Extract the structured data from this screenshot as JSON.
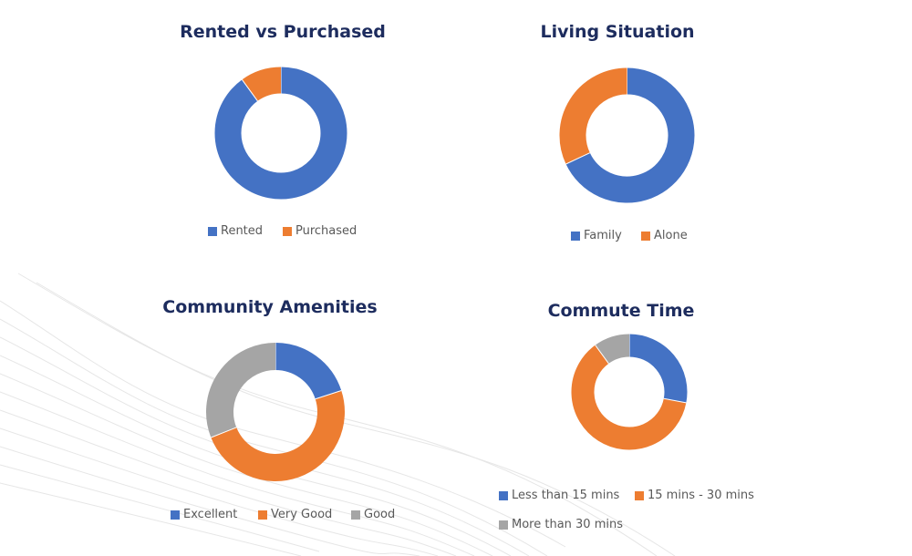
{
  "colors": {
    "blue": "#4472c4",
    "orange": "#ed7d31",
    "gray": "#a5a5a5",
    "title": "#1d2c5e"
  },
  "chart_data": [
    {
      "type": "pie",
      "variant": "donut",
      "title": "Rented vs Purchased",
      "labels": [
        "Rented",
        "Purchased"
      ],
      "values": [
        90,
        10
      ],
      "colors": [
        "#4472c4",
        "#ed7d31"
      ],
      "legend": "bottom"
    },
    {
      "type": "pie",
      "variant": "donut",
      "title": "Living Situation",
      "labels": [
        "Family",
        "Alone"
      ],
      "values": [
        68,
        32
      ],
      "colors": [
        "#4472c4",
        "#ed7d31"
      ],
      "legend": "bottom"
    },
    {
      "type": "pie",
      "variant": "donut",
      "title": "Community Amenities",
      "labels": [
        "Excellent",
        "Very Good",
        "Good"
      ],
      "values": [
        20,
        49,
        31
      ],
      "colors": [
        "#4472c4",
        "#ed7d31",
        "#a5a5a5"
      ],
      "legend": "bottom"
    },
    {
      "type": "pie",
      "variant": "donut",
      "title": "Commute Time",
      "labels": [
        "Less than 15 mins",
        "15 mins - 30 mins",
        "More than 30 mins"
      ],
      "values": [
        28,
        62,
        10
      ],
      "colors": [
        "#4472c4",
        "#ed7d31",
        "#a5a5a5"
      ],
      "legend": "bottom"
    }
  ]
}
